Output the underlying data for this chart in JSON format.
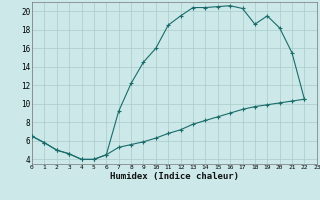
{
  "xlabel": "Humidex (Indice chaleur)",
  "bg_color": "#cce8e8",
  "grid_color": "#aacccc",
  "line_color": "#1a6b6b",
  "x_upper": [
    0,
    1,
    2,
    3,
    4,
    5,
    6,
    7,
    8,
    9,
    10,
    11,
    12,
    13,
    14,
    15,
    16,
    17,
    18,
    19,
    20,
    21,
    22
  ],
  "y_upper": [
    6.5,
    5.8,
    5.0,
    4.6,
    4.0,
    4.0,
    4.5,
    9.2,
    12.2,
    14.5,
    16.0,
    18.5,
    19.5,
    20.4,
    20.4,
    20.5,
    20.6,
    20.3,
    18.6,
    19.5,
    18.2,
    15.5,
    10.5
  ],
  "x_lower": [
    0,
    1,
    2,
    3,
    4,
    5,
    6,
    7,
    8,
    9,
    10,
    11,
    12,
    13,
    14,
    15,
    16,
    17,
    18,
    19,
    20,
    21,
    22
  ],
  "y_lower": [
    6.5,
    5.8,
    5.0,
    4.6,
    4.0,
    4.0,
    4.5,
    5.3,
    5.6,
    5.9,
    6.3,
    6.8,
    7.2,
    7.8,
    8.2,
    8.6,
    9.0,
    9.4,
    9.7,
    9.9,
    10.1,
    10.3,
    10.5
  ],
  "xlim": [
    0,
    23
  ],
  "ylim": [
    3.5,
    21
  ],
  "yticks": [
    4,
    6,
    8,
    10,
    12,
    14,
    16,
    18,
    20
  ],
  "xticks": [
    0,
    1,
    2,
    3,
    4,
    5,
    6,
    7,
    8,
    9,
    10,
    11,
    12,
    13,
    14,
    15,
    16,
    17,
    18,
    19,
    20,
    21,
    22,
    23
  ]
}
